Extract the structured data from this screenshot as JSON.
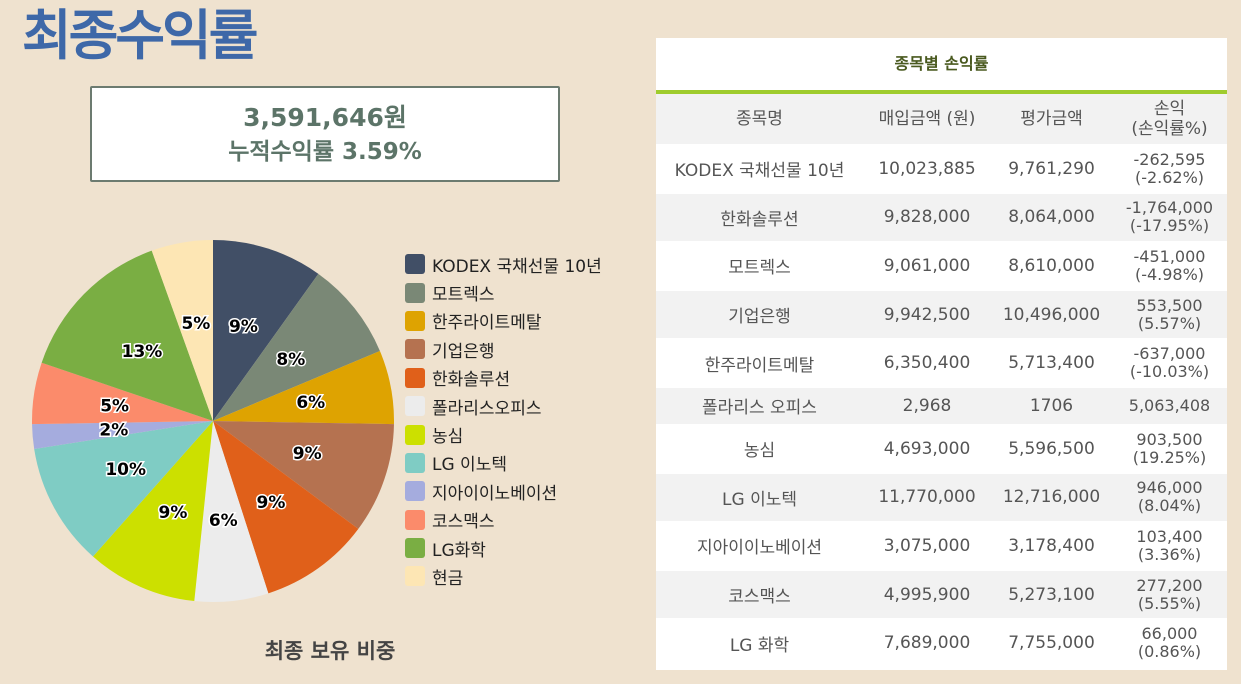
{
  "title": "최종수익률",
  "summary": {
    "amount": "3,591,646원",
    "rate": "누적수익률 3.59%"
  },
  "pie_caption": "최종 보유 비중",
  "chart_data": [
    {
      "type": "pie",
      "title": "최종 보유 비중",
      "start_angle_deg": 0,
      "direction": "clockwise",
      "slices": [
        {
          "label": "KODEX 국채선물 10년",
          "value": 9,
          "color": "#414f66"
        },
        {
          "label": "모트렉스",
          "value": 8,
          "color": "#7a8876"
        },
        {
          "label": "한주라이트메탈",
          "value": 6,
          "color": "#dea301"
        },
        {
          "label": "기업은행",
          "value": 9,
          "color": "#b57250"
        },
        {
          "label": "한화솔루션",
          "value": 9,
          "color": "#e0601a"
        },
        {
          "label": "폴라리스오피스",
          "value": 6,
          "color": "#ececec"
        },
        {
          "label": "농심",
          "value": 9,
          "color": "#cce000"
        },
        {
          "label": "LG 이노텍",
          "value": 10,
          "color": "#7fccc4"
        },
        {
          "label": "지아이이노베이션",
          "value": 2,
          "color": "#a5acde"
        },
        {
          "label": "코스맥스",
          "value": 5,
          "color": "#fb8b6b"
        },
        {
          "label": "LG화학",
          "value": 13,
          "color": "#7aae43"
        },
        {
          "label": "현금",
          "value": 5,
          "color": "#fde6b4"
        }
      ],
      "legend_position": "right"
    },
    {
      "type": "table",
      "title": "종목별 손익률",
      "headers": [
        "종목명",
        "매입금액 (원)",
        "평가금액",
        "손익",
        "(손익률%)"
      ],
      "rows": [
        {
          "name": "KODEX 국채선물 10년",
          "buy": "10,023,885",
          "eval": "9,761,290",
          "pnl": "-262,595",
          "pct": "(-2.62%)"
        },
        {
          "name": "한화솔루션",
          "buy": "9,828,000",
          "eval": "8,064,000",
          "pnl": "-1,764,000",
          "pct": "(-17.95%)"
        },
        {
          "name": "모트렉스",
          "buy": "9,061,000",
          "eval": "8,610,000",
          "pnl": "-451,000",
          "pct": "(-4.98%)"
        },
        {
          "name": "기업은행",
          "buy": "9,942,500",
          "eval": "10,496,000",
          "pnl": "553,500",
          "pct": "(5.57%)"
        },
        {
          "name": "한주라이트메탈",
          "buy": "6,350,400",
          "eval": "5,713,400",
          "pnl": "-637,000",
          "pct": "(-10.03%)"
        },
        {
          "name": "폴라리스 오피스",
          "buy": "2,968",
          "eval": "1706",
          "pnl": "5,063,408",
          "pct": ""
        },
        {
          "name": "농심",
          "buy": "4,693,000",
          "eval": "5,596,500",
          "pnl": "903,500",
          "pct": "(19.25%)"
        },
        {
          "name": "LG 이노텍",
          "buy": "11,770,000",
          "eval": "12,716,000",
          "pnl": "946,000",
          "pct": "(8.04%)"
        },
        {
          "name": "지아이이노베이션",
          "buy": "3,075,000",
          "eval": "3,178,400",
          "pnl": "103,400",
          "pct": "(3.36%)"
        },
        {
          "name": "코스맥스",
          "buy": "4,995,900",
          "eval": "5,273,100",
          "pnl": "277,200",
          "pct": "(5.55%)"
        },
        {
          "name": "LG 화학",
          "buy": "7,689,000",
          "eval": "7,755,000",
          "pnl": "66,000",
          "pct": "(0.86%)"
        }
      ]
    }
  ]
}
